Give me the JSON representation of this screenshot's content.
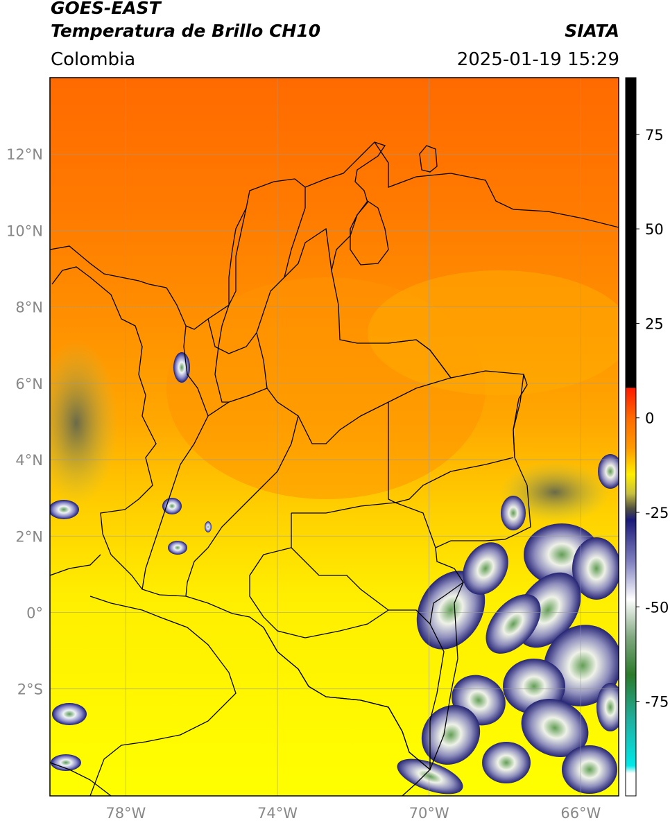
{
  "header": {
    "line1": "GOES-EAST",
    "line2": "Temperatura de Brillo CH10",
    "region": "Colombia",
    "agency": "SIATA",
    "datetime": "2025-01-19 15:29"
  },
  "map": {
    "lon_range": [
      -80,
      -65
    ],
    "lat_range": [
      -4.8,
      14
    ],
    "lon_ticks": [
      {
        "value": -78,
        "label": "78°W"
      },
      {
        "value": -74,
        "label": "74°W"
      },
      {
        "value": -70,
        "label": "70°W"
      },
      {
        "value": -66,
        "label": "66°W"
      }
    ],
    "lat_ticks": [
      {
        "value": 12,
        "label": "12°N"
      },
      {
        "value": 10,
        "label": "10°N"
      },
      {
        "value": 8,
        "label": "8°N"
      },
      {
        "value": 6,
        "label": "6°N"
      },
      {
        "value": 4,
        "label": "4°N"
      },
      {
        "value": 2,
        "label": "2°N"
      },
      {
        "value": 0,
        "label": "0°"
      },
      {
        "value": -2,
        "label": "2°S"
      }
    ],
    "colors": {
      "warm_north": "#ff6a00",
      "warm_mid": "#ff9a00",
      "yellow": "#ffee00",
      "deep_cloud": "#1a1a7a",
      "cloud_white": "#e8ecf0",
      "cloud_green": "#3a8a3a",
      "border": "#000000",
      "grid": "#999999"
    }
  },
  "colorbar": {
    "range": [
      -100,
      90
    ],
    "ticks": [
      {
        "value": 75,
        "label": "75"
      },
      {
        "value": 50,
        "label": "50"
      },
      {
        "value": 25,
        "label": "25"
      },
      {
        "value": 0,
        "label": "0"
      },
      {
        "value": -25,
        "label": "-25"
      },
      {
        "value": -50,
        "label": "-50"
      },
      {
        "value": -75,
        "label": "-75"
      }
    ],
    "stops": [
      {
        "value": 90,
        "color": "#000000"
      },
      {
        "value": 8,
        "color": "#000000"
      },
      {
        "value": 7.9,
        "color": "#ff1a00"
      },
      {
        "value": 0,
        "color": "#ff6a00"
      },
      {
        "value": -8,
        "color": "#ff9a00"
      },
      {
        "value": -15,
        "color": "#ffee00"
      },
      {
        "value": -20,
        "color": "#c8c040"
      },
      {
        "value": -24,
        "color": "#505040"
      },
      {
        "value": -27,
        "color": "#1a1a7a"
      },
      {
        "value": -38,
        "color": "#8080c0"
      },
      {
        "value": -48,
        "color": "#ffffff"
      },
      {
        "value": -58,
        "color": "#80a880"
      },
      {
        "value": -68,
        "color": "#2a7a2a"
      },
      {
        "value": -80,
        "color": "#20b0a0"
      },
      {
        "value": -92,
        "color": "#00e8e8"
      },
      {
        "value": -94,
        "color": "#ffffff"
      },
      {
        "value": -100,
        "color": "#ffffff"
      }
    ]
  }
}
